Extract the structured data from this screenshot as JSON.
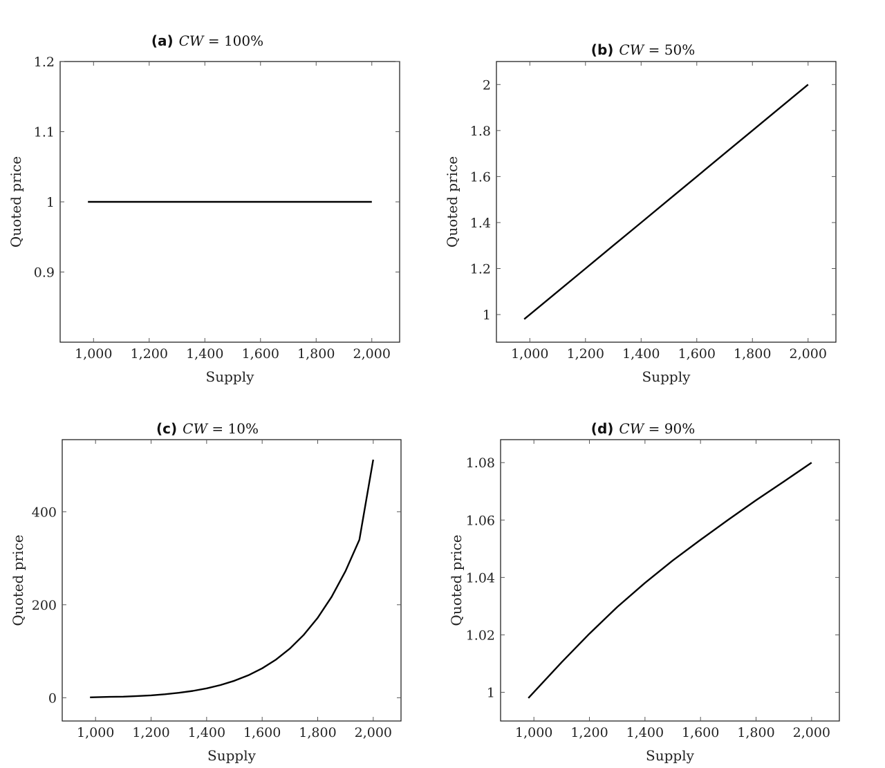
{
  "chart_data": [
    {
      "type": "line",
      "panel_label": "(a)",
      "title_math": "CW",
      "title_eq": " = 100%",
      "xlabel": "Supply",
      "ylabel": "Quoted price",
      "xlim": [
        880,
        2100
      ],
      "ylim": [
        0.8,
        1.2
      ],
      "xticks": [
        1000,
        1200,
        1400,
        1600,
        1800,
        2000
      ],
      "xtick_labels": [
        "1,000",
        "1,200",
        "1,400",
        "1,600",
        "1,800",
        "2,000"
      ],
      "yticks": [
        0.9,
        1.0,
        1.1,
        1.2
      ],
      "ytick_labels": [
        "0.9",
        "1",
        "1.1",
        "1.2"
      ],
      "x": [
        980,
        1100,
        1200,
        1300,
        1400,
        1500,
        1600,
        1700,
        1800,
        1900,
        2000
      ],
      "y": [
        1,
        1,
        1,
        1,
        1,
        1,
        1,
        1,
        1,
        1,
        1
      ]
    },
    {
      "type": "line",
      "panel_label": "(b)",
      "title_math": "CW",
      "title_eq": " = 50%",
      "xlabel": "Supply",
      "ylabel": "Quoted price",
      "xlim": [
        880,
        2100
      ],
      "ylim": [
        0.88,
        2.1
      ],
      "xticks": [
        1000,
        1200,
        1400,
        1600,
        1800,
        2000
      ],
      "xtick_labels": [
        "1,000",
        "1,200",
        "1,400",
        "1,600",
        "1,800",
        "2,000"
      ],
      "yticks": [
        1.0,
        1.2,
        1.4,
        1.6,
        1.8,
        2.0
      ],
      "ytick_labels": [
        "1",
        "1.2",
        "1.4",
        "1.6",
        "1.8",
        "2"
      ],
      "x": [
        980,
        1100,
        1200,
        1300,
        1400,
        1500,
        1600,
        1700,
        1800,
        1900,
        2000
      ],
      "y": [
        0.98,
        1.1,
        1.2,
        1.3,
        1.4,
        1.5,
        1.6,
        1.7,
        1.8,
        1.9,
        2.0
      ]
    },
    {
      "type": "line",
      "panel_label": "(c)",
      "title_math": "CW",
      "title_eq": " = 10%",
      "xlabel": "Supply",
      "ylabel": "Quoted price",
      "xlim": [
        880,
        2100
      ],
      "ylim": [
        -50,
        555
      ],
      "xticks": [
        1000,
        1200,
        1400,
        1600,
        1800,
        2000
      ],
      "xtick_labels": [
        "1,000",
        "1,200",
        "1,400",
        "1,600",
        "1,800",
        "2,000"
      ],
      "yticks": [
        0,
        200,
        400
      ],
      "ytick_labels": [
        "0",
        "200",
        "400"
      ],
      "x": [
        980,
        1050,
        1100,
        1150,
        1200,
        1250,
        1300,
        1350,
        1400,
        1450,
        1500,
        1550,
        1600,
        1650,
        1700,
        1750,
        1800,
        1850,
        1900,
        1950,
        2000
      ],
      "y": [
        0.8,
        1.9,
        2.3,
        3.6,
        5.2,
        7.5,
        10.6,
        14.7,
        20.2,
        27.3,
        36.5,
        48.2,
        63.2,
        82.1,
        105.8,
        135.3,
        171.9,
        217.0,
        272.3,
        339.8,
        512
      ]
    },
    {
      "type": "line",
      "panel_label": "(d)",
      "title_math": "CW",
      "title_eq": " = 90%",
      "xlabel": "Supply",
      "ylabel": "Quoted price",
      "xlim": [
        880,
        2100
      ],
      "ylim": [
        0.99,
        1.088
      ],
      "xticks": [
        1000,
        1200,
        1400,
        1600,
        1800,
        2000
      ],
      "xtick_labels": [
        "1,000",
        "1,200",
        "1,400",
        "1,600",
        "1,800",
        "2,000"
      ],
      "yticks": [
        1.0,
        1.02,
        1.04,
        1.06,
        1.08
      ],
      "ytick_labels": [
        "1",
        "1.02",
        "1.04",
        "1.06",
        "1.08"
      ],
      "x": [
        980,
        1100,
        1200,
        1300,
        1400,
        1500,
        1600,
        1700,
        1800,
        1900,
        2000
      ],
      "y": [
        0.998,
        1.0105,
        1.0204,
        1.0297,
        1.0381,
        1.0459,
        1.0531,
        1.0601,
        1.0669,
        1.0734,
        1.08
      ]
    }
  ]
}
